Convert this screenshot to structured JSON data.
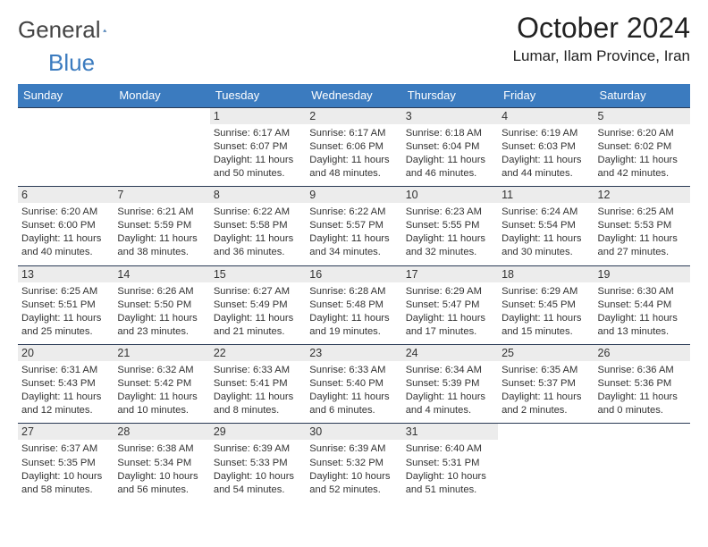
{
  "brand": {
    "text_a": "General",
    "text_b": "Blue"
  },
  "header": {
    "title": "October 2024",
    "location": "Lumar, Ilam Province, Iran"
  },
  "colors": {
    "brand_blue": "#3b7bbf",
    "header_text": "#ffffff",
    "daynum_bg": "#ececec",
    "border": "#2a3a55",
    "body_text": "#333333"
  },
  "daysOfWeek": [
    "Sunday",
    "Monday",
    "Tuesday",
    "Wednesday",
    "Thursday",
    "Friday",
    "Saturday"
  ],
  "weeks": [
    [
      {
        "n": "",
        "sunrise": "",
        "sunset": "",
        "daylight": ""
      },
      {
        "n": "",
        "sunrise": "",
        "sunset": "",
        "daylight": ""
      },
      {
        "n": "1",
        "sunrise": "Sunrise: 6:17 AM",
        "sunset": "Sunset: 6:07 PM",
        "daylight": "Daylight: 11 hours and 50 minutes."
      },
      {
        "n": "2",
        "sunrise": "Sunrise: 6:17 AM",
        "sunset": "Sunset: 6:06 PM",
        "daylight": "Daylight: 11 hours and 48 minutes."
      },
      {
        "n": "3",
        "sunrise": "Sunrise: 6:18 AM",
        "sunset": "Sunset: 6:04 PM",
        "daylight": "Daylight: 11 hours and 46 minutes."
      },
      {
        "n": "4",
        "sunrise": "Sunrise: 6:19 AM",
        "sunset": "Sunset: 6:03 PM",
        "daylight": "Daylight: 11 hours and 44 minutes."
      },
      {
        "n": "5",
        "sunrise": "Sunrise: 6:20 AM",
        "sunset": "Sunset: 6:02 PM",
        "daylight": "Daylight: 11 hours and 42 minutes."
      }
    ],
    [
      {
        "n": "6",
        "sunrise": "Sunrise: 6:20 AM",
        "sunset": "Sunset: 6:00 PM",
        "daylight": "Daylight: 11 hours and 40 minutes."
      },
      {
        "n": "7",
        "sunrise": "Sunrise: 6:21 AM",
        "sunset": "Sunset: 5:59 PM",
        "daylight": "Daylight: 11 hours and 38 minutes."
      },
      {
        "n": "8",
        "sunrise": "Sunrise: 6:22 AM",
        "sunset": "Sunset: 5:58 PM",
        "daylight": "Daylight: 11 hours and 36 minutes."
      },
      {
        "n": "9",
        "sunrise": "Sunrise: 6:22 AM",
        "sunset": "Sunset: 5:57 PM",
        "daylight": "Daylight: 11 hours and 34 minutes."
      },
      {
        "n": "10",
        "sunrise": "Sunrise: 6:23 AM",
        "sunset": "Sunset: 5:55 PM",
        "daylight": "Daylight: 11 hours and 32 minutes."
      },
      {
        "n": "11",
        "sunrise": "Sunrise: 6:24 AM",
        "sunset": "Sunset: 5:54 PM",
        "daylight": "Daylight: 11 hours and 30 minutes."
      },
      {
        "n": "12",
        "sunrise": "Sunrise: 6:25 AM",
        "sunset": "Sunset: 5:53 PM",
        "daylight": "Daylight: 11 hours and 27 minutes."
      }
    ],
    [
      {
        "n": "13",
        "sunrise": "Sunrise: 6:25 AM",
        "sunset": "Sunset: 5:51 PM",
        "daylight": "Daylight: 11 hours and 25 minutes."
      },
      {
        "n": "14",
        "sunrise": "Sunrise: 6:26 AM",
        "sunset": "Sunset: 5:50 PM",
        "daylight": "Daylight: 11 hours and 23 minutes."
      },
      {
        "n": "15",
        "sunrise": "Sunrise: 6:27 AM",
        "sunset": "Sunset: 5:49 PM",
        "daylight": "Daylight: 11 hours and 21 minutes."
      },
      {
        "n": "16",
        "sunrise": "Sunrise: 6:28 AM",
        "sunset": "Sunset: 5:48 PM",
        "daylight": "Daylight: 11 hours and 19 minutes."
      },
      {
        "n": "17",
        "sunrise": "Sunrise: 6:29 AM",
        "sunset": "Sunset: 5:47 PM",
        "daylight": "Daylight: 11 hours and 17 minutes."
      },
      {
        "n": "18",
        "sunrise": "Sunrise: 6:29 AM",
        "sunset": "Sunset: 5:45 PM",
        "daylight": "Daylight: 11 hours and 15 minutes."
      },
      {
        "n": "19",
        "sunrise": "Sunrise: 6:30 AM",
        "sunset": "Sunset: 5:44 PM",
        "daylight": "Daylight: 11 hours and 13 minutes."
      }
    ],
    [
      {
        "n": "20",
        "sunrise": "Sunrise: 6:31 AM",
        "sunset": "Sunset: 5:43 PM",
        "daylight": "Daylight: 11 hours and 12 minutes."
      },
      {
        "n": "21",
        "sunrise": "Sunrise: 6:32 AM",
        "sunset": "Sunset: 5:42 PM",
        "daylight": "Daylight: 11 hours and 10 minutes."
      },
      {
        "n": "22",
        "sunrise": "Sunrise: 6:33 AM",
        "sunset": "Sunset: 5:41 PM",
        "daylight": "Daylight: 11 hours and 8 minutes."
      },
      {
        "n": "23",
        "sunrise": "Sunrise: 6:33 AM",
        "sunset": "Sunset: 5:40 PM",
        "daylight": "Daylight: 11 hours and 6 minutes."
      },
      {
        "n": "24",
        "sunrise": "Sunrise: 6:34 AM",
        "sunset": "Sunset: 5:39 PM",
        "daylight": "Daylight: 11 hours and 4 minutes."
      },
      {
        "n": "25",
        "sunrise": "Sunrise: 6:35 AM",
        "sunset": "Sunset: 5:37 PM",
        "daylight": "Daylight: 11 hours and 2 minutes."
      },
      {
        "n": "26",
        "sunrise": "Sunrise: 6:36 AM",
        "sunset": "Sunset: 5:36 PM",
        "daylight": "Daylight: 11 hours and 0 minutes."
      }
    ],
    [
      {
        "n": "27",
        "sunrise": "Sunrise: 6:37 AM",
        "sunset": "Sunset: 5:35 PM",
        "daylight": "Daylight: 10 hours and 58 minutes."
      },
      {
        "n": "28",
        "sunrise": "Sunrise: 6:38 AM",
        "sunset": "Sunset: 5:34 PM",
        "daylight": "Daylight: 10 hours and 56 minutes."
      },
      {
        "n": "29",
        "sunrise": "Sunrise: 6:39 AM",
        "sunset": "Sunset: 5:33 PM",
        "daylight": "Daylight: 10 hours and 54 minutes."
      },
      {
        "n": "30",
        "sunrise": "Sunrise: 6:39 AM",
        "sunset": "Sunset: 5:32 PM",
        "daylight": "Daylight: 10 hours and 52 minutes."
      },
      {
        "n": "31",
        "sunrise": "Sunrise: 6:40 AM",
        "sunset": "Sunset: 5:31 PM",
        "daylight": "Daylight: 10 hours and 51 minutes."
      },
      {
        "n": "",
        "sunrise": "",
        "sunset": "",
        "daylight": ""
      },
      {
        "n": "",
        "sunrise": "",
        "sunset": "",
        "daylight": ""
      }
    ]
  ]
}
